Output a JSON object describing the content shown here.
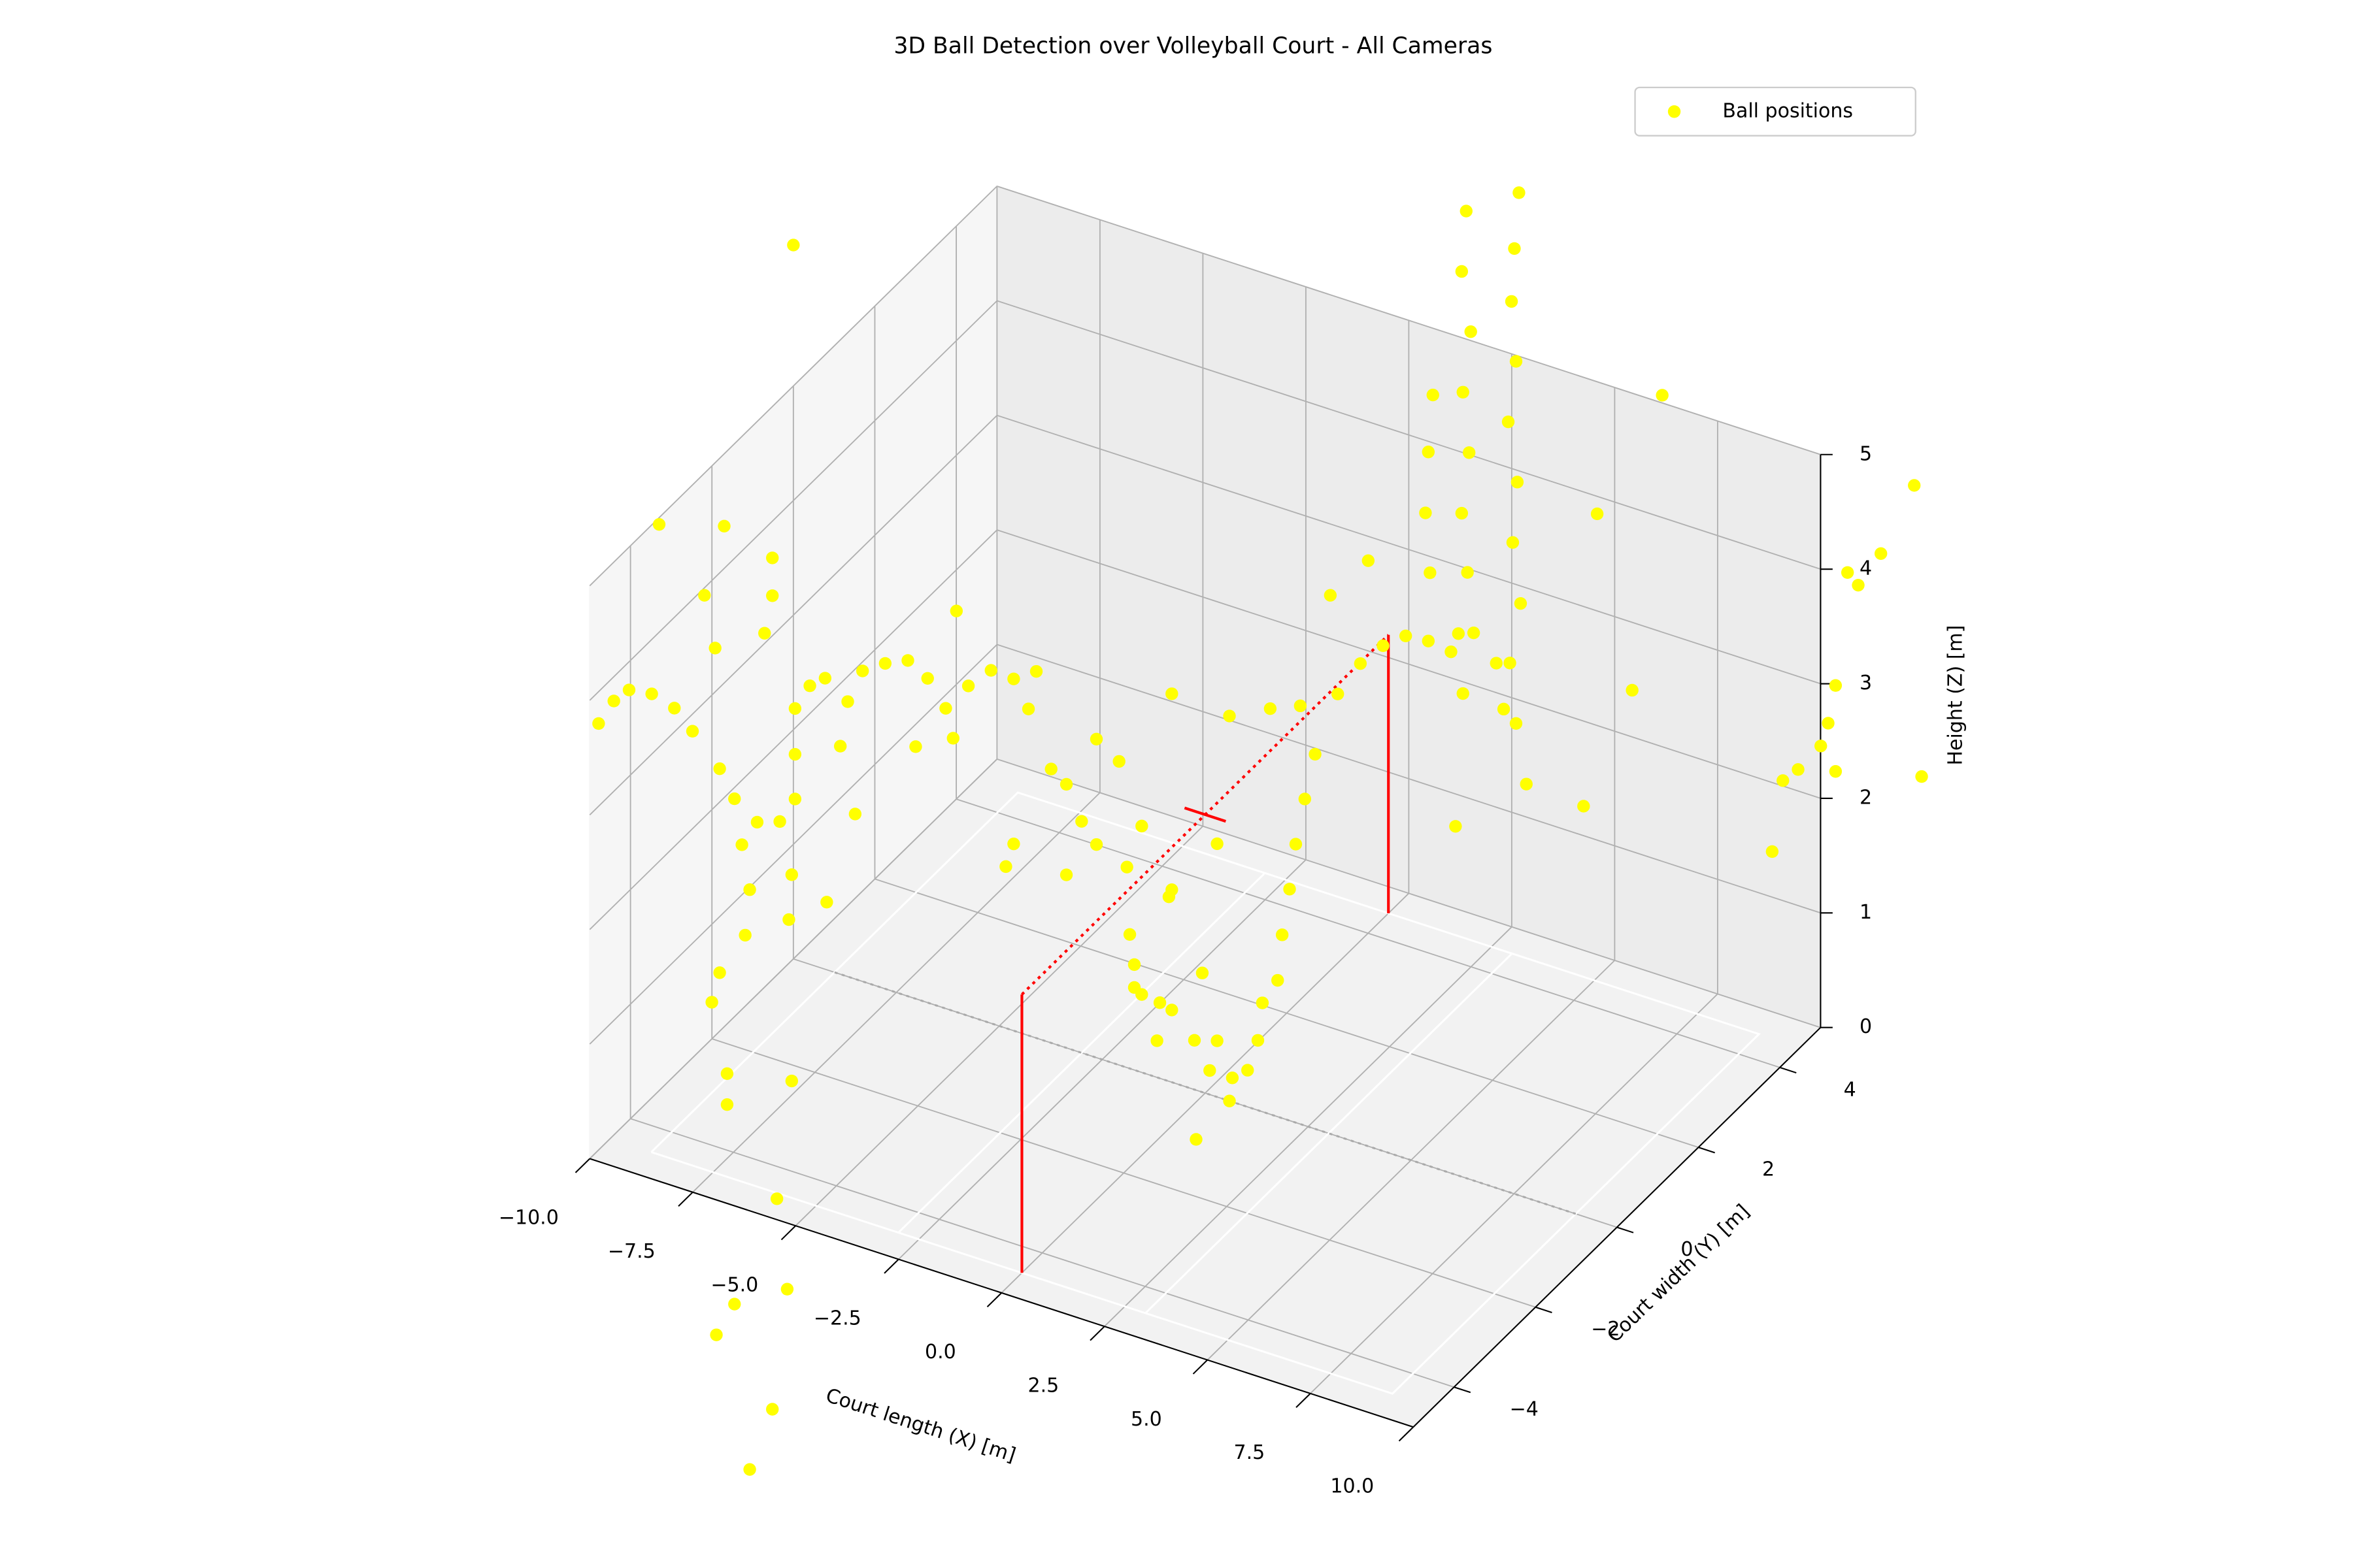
{
  "chart_data": {
    "type": "scatter3d",
    "title": "3D Ball Detection over Volleyball Court - All Cameras",
    "xlabel": "Court length (X) [m]",
    "ylabel": "Court width (Y) [m]",
    "zlabel": "Height (Z) [m]",
    "xlim": [
      -10,
      10
    ],
    "ylim": [
      -5,
      5
    ],
    "zlim": [
      0,
      5
    ],
    "xticks": [
      {
        "value": -10,
        "label": "−10.0"
      },
      {
        "value": -7.5,
        "label": "−7.5"
      },
      {
        "value": -5,
        "label": "−5.0"
      },
      {
        "value": -2.5,
        "label": "−2.5"
      },
      {
        "value": 0,
        "label": "0.0"
      },
      2.5,
      {
        "value": 5,
        "label": "5.0"
      },
      7.5,
      {
        "value": 10,
        "label": "10.0"
      }
    ],
    "yticks": [
      {
        "value": -4,
        "label": "−4"
      },
      {
        "value": -2,
        "label": "−2"
      },
      0,
      2,
      4
    ],
    "zticks": [
      0,
      1,
      2,
      3,
      4,
      5
    ],
    "grid": true,
    "legend": "upper right",
    "series": [
      {
        "name": "Ball positions",
        "color": "#ffff00",
        "x": [
          -10.0,
          -13.26,
          -11.68,
          -6.04,
          11.1,
          9.52,
          10.37,
          9.19,
          6.08,
          13.77,
          -10.04,
          -10.4,
          -10.15,
          -11.43,
          -11.87,
          -10.51,
          -11.06,
          -0.22,
          -9.19,
          17.22,
          16.41,
          15.6,
          15.86,
          15.31,
          15.13,
          14.95,
          14.4,
          15.31,
          17.4,
          14.03,
          6.34,
          6.23,
          6.45,
          6.26,
          6.41,
          6.23,
          6.37,
          6.15,
          6.26,
          7.62,
          7.51,
          7.44,
          7.55,
          7.36,
          7.58,
          7.47,
          7.66,
          7.4,
          7.55,
          7.8,
          5.53,
          5.42,
          5.35,
          5.46,
          3.22,
          3.77,
          4.32,
          4.87,
          5.42,
          5.97,
          6.52,
          7.07,
          7.25,
          3.04,
          3.96,
          2.67,
          2.42,
          2.2,
          2.05,
          1.87,
          1.76,
          1.39,
          1.28,
          1.03,
          0.59,
          0.11,
          -0.26,
          -0.81,
          -1.17,
          -1.54,
          -1.72,
          -1.83,
          -0.81,
          0.59,
          1.58,
          2.31,
          -2.64,
          -2.09,
          -3.37,
          -3.74,
          -3.0,
          -2.64,
          -1.9,
          -3.37,
          -4.84,
          -4.65,
          -0.81,
          0.29,
          -1.54,
          -14.73,
          -14.36,
          -13.99,
          -13.44,
          -12.89,
          -12.45,
          -12.16,
          -11.9,
          -10.51,
          -10.51,
          -10.7,
          -11.79,
          -11.43,
          -10.88,
          -10.33,
          -9.96,
          -9.96,
          -9.96,
          -9.6,
          -9.23,
          -8.68,
          -8.32,
          -7.77,
          -7.22,
          -6.74,
          -6.3,
          -5.75,
          -5.2,
          -4.65,
          -4.1,
          -4.29,
          -6.12,
          -7.03,
          -8.86,
          -8.5,
          -11.25,
          -11.06,
          -11.17,
          -11.79,
          -11.98,
          -11.61,
          -11.61,
          -10.04,
          -10.11,
          -1.72,
          -1.1,
          -0.07,
          0.29,
          0.66,
          -0.88
        ],
        "y": [
          0,
          0,
          0,
          0,
          0,
          0,
          0,
          0,
          0,
          0,
          0,
          0,
          0,
          0,
          0,
          0,
          0,
          0,
          0,
          0,
          0,
          0,
          0,
          0,
          0,
          0,
          0,
          0,
          0,
          0,
          0,
          0,
          0,
          0,
          0,
          0,
          0,
          0,
          0,
          0,
          0,
          0,
          0,
          0,
          0,
          0,
          0,
          0,
          0,
          0,
          0,
          0,
          0,
          0,
          0,
          0,
          0,
          0,
          0,
          0,
          0,
          0,
          0,
          0,
          0,
          0,
          0,
          0,
          0,
          0,
          0,
          0,
          0,
          0,
          0,
          0,
          0,
          0,
          0,
          0,
          0,
          0,
          0,
          0,
          0,
          0,
          0,
          0,
          0,
          0,
          0,
          0,
          0,
          0,
          0,
          0,
          0,
          0,
          0,
          0,
          0,
          0,
          0,
          0,
          0,
          0,
          0,
          0,
          0,
          0,
          0,
          0,
          0,
          0,
          0,
          0,
          0,
          0,
          0,
          0,
          0,
          0,
          0,
          0,
          0,
          0,
          0,
          0,
          0,
          0,
          0,
          0,
          0,
          0,
          0,
          0,
          0,
          0,
          0,
          0,
          0,
          0,
          0,
          0,
          0,
          0,
          0,
          0,
          0
        ],
        "z": [
          6.23,
          3.41,
          3.58,
          3.5,
          7.39,
          6.17,
          4.73,
          3.58,
          3.04,
          3.72,
          -1.07,
          -2.14,
          -2.9,
          -3.18,
          -3.5,
          -3.99,
          -4.58,
          -0.43,
          0.59,
          7.32,
          6.63,
          6.37,
          6.29,
          5.35,
          5.0,
          4.78,
          4.51,
          4.6,
          4.8,
          4.37,
          8.44,
          7.9,
          7.4,
          6.85,
          6.34,
          5.79,
          5.29,
          4.73,
          4.22,
          8.75,
          8.25,
          7.78,
          7.27,
          6.72,
          6.22,
          5.68,
          5.17,
          4.62,
          4.11,
          3.61,
          6.74,
          6.23,
          5.69,
          5.18,
          3.86,
          4.19,
          4.41,
          4.56,
          4.58,
          4.55,
          4.78,
          4.58,
          4.2,
          4.7,
          5.11,
          3.27,
          2.85,
          2.43,
          2.02,
          1.6,
          1.19,
          0.95,
          0.61,
          0.32,
          0.0,
          0.21,
          0.43,
          0.63,
          0.32,
          0.68,
          0.92,
          1.17,
          3.39,
          3.36,
          3.54,
          3.65,
          2.78,
          2.65,
          2.3,
          2.39,
          2.02,
          1.86,
          1.75,
          1.51,
          1.41,
          1.63,
          1.68,
          2.21,
          2.15,
          1.5,
          1.74,
          1.88,
          1.91,
          1.85,
          1.7,
          2.92,
          2.49,
          3.44,
          3.11,
          2.76,
          1.45,
          1.23,
          1.09,
          1.16,
          1.4,
          1.79,
          2.19,
          2.43,
          2.54,
          2.4,
          2.71,
          2.84,
          2.93,
          2.83,
          2.62,
          2.88,
          3.08,
          3.07,
          3.2,
          2.85,
          2.38,
          2.2,
          1.99,
          1.44,
          0.85,
          0.48,
          0.07,
          -0.33,
          -0.61,
          -1.19,
          -1.46,
          0.73,
          0.33,
          0.72,
          0.66,
          1.04,
          0.49,
          0.21,
          1.61
        ]
      }
    ],
    "lines": [
      {
        "color": "#ffffff",
        "style": "solid",
        "x": [
          -9,
          9,
          9,
          -9,
          -9
        ],
        "y": [
          -4.5,
          -4.5,
          4.5,
          4.5,
          -4.5
        ],
        "z": [
          0,
          0,
          0,
          0,
          0
        ]
      },
      {
        "color": "#ffffff",
        "style": "solid",
        "x": [
          -3,
          -3
        ],
        "y": [
          -4.5,
          4.5
        ],
        "z": [
          0,
          0
        ]
      },
      {
        "color": "#ffffff",
        "style": "solid",
        "x": [
          3,
          3
        ],
        "y": [
          -4.5,
          4.5
        ],
        "z": [
          0,
          0
        ]
      },
      {
        "color": "#aaaaaa",
        "style": "dotted",
        "x": [
          -9,
          9
        ],
        "y": [
          0,
          0
        ],
        "z": [
          0,
          0
        ]
      },
      {
        "color": "#ff0000",
        "style": "solid",
        "x": [
          0,
          0
        ],
        "y": [
          -4.5,
          -4.5
        ],
        "z": [
          0,
          2.43
        ]
      },
      {
        "color": "#ff0000",
        "style": "solid",
        "x": [
          0,
          0
        ],
        "y": [
          4.5,
          4.5
        ],
        "z": [
          0,
          2.43
        ]
      },
      {
        "color": "#ff0000",
        "style": "dotted",
        "x": [
          0,
          0
        ],
        "y": [
          -4.5,
          4.5
        ],
        "z": [
          2.43,
          2.43
        ]
      },
      {
        "color": "#ff0000",
        "style": "solid",
        "x": [
          -0.5,
          0.5
        ],
        "y": [
          0,
          0
        ],
        "z": [
          2.43,
          2.43
        ]
      }
    ]
  }
}
